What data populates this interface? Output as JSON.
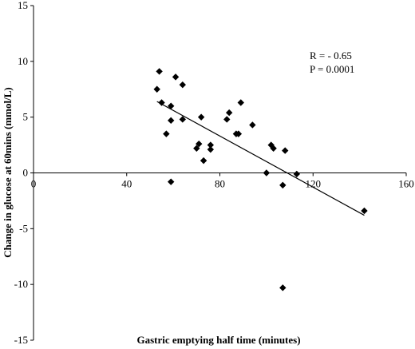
{
  "chart_data": {
    "type": "scatter",
    "title": "",
    "xlabel": "Gastric emptying half time (minutes)",
    "ylabel": "Change in glucose at 60mins  (mmol/L)",
    "xlim": [
      0,
      160
    ],
    "ylim": [
      -15,
      15
    ],
    "x_ticks": [
      0,
      40,
      80,
      120,
      160
    ],
    "y_ticks": [
      -15,
      -10,
      -5,
      0,
      5,
      10,
      15
    ],
    "grid": false,
    "legend": "none",
    "marker_color": "#000000",
    "trendline": {
      "x": [
        53,
        142
      ],
      "y": [
        6.4,
        -3.8
      ]
    },
    "annotations": [
      "R = - 0.65",
      "P = 0.0001"
    ],
    "points": [
      {
        "x": 53,
        "y": 7.5
      },
      {
        "x": 54,
        "y": 9.1
      },
      {
        "x": 55,
        "y": 6.3
      },
      {
        "x": 57,
        "y": 3.5
      },
      {
        "x": 59,
        "y": 6.0
      },
      {
        "x": 59,
        "y": 4.7
      },
      {
        "x": 59,
        "y": -0.8
      },
      {
        "x": 61,
        "y": 8.6
      },
      {
        "x": 64,
        "y": 4.8
      },
      {
        "x": 64,
        "y": 7.9
      },
      {
        "x": 70,
        "y": 2.2
      },
      {
        "x": 71,
        "y": 2.6
      },
      {
        "x": 72,
        "y": 5.0
      },
      {
        "x": 73,
        "y": 1.1
      },
      {
        "x": 76,
        "y": 2.5
      },
      {
        "x": 76,
        "y": 2.1
      },
      {
        "x": 83,
        "y": 4.8
      },
      {
        "x": 84,
        "y": 5.4
      },
      {
        "x": 87,
        "y": 3.5
      },
      {
        "x": 88,
        "y": 3.5
      },
      {
        "x": 89,
        "y": 6.3
      },
      {
        "x": 94,
        "y": 4.3
      },
      {
        "x": 100,
        "y": 0.0
      },
      {
        "x": 102,
        "y": 2.5
      },
      {
        "x": 103,
        "y": 2.2
      },
      {
        "x": 107,
        "y": -1.1
      },
      {
        "x": 107,
        "y": -10.3
      },
      {
        "x": 108,
        "y": 2.0
      },
      {
        "x": 113,
        "y": -0.1
      },
      {
        "x": 142,
        "y": -3.4
      }
    ]
  }
}
